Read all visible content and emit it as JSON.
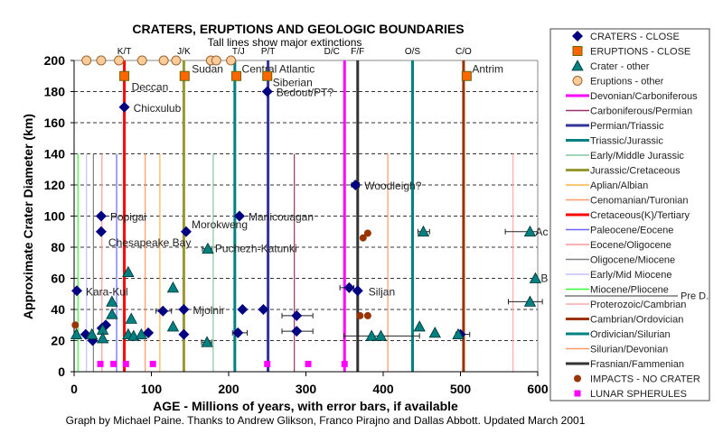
{
  "chart_data": {
    "type": "scatter",
    "title": "CRATERS, ERUPTIONS  AND GEOLOGIC BOUNDARIES",
    "subtitle": "Tall lines show major extinctions",
    "xlabel": "AGE - Millions of years, with error bars, if available",
    "ylabel": "Approximate Crater Diameter (km)",
    "footer": "Graph by Michael Paine. Thanks to Andrew Glikson, Franco Pirajno and Dallas Abbott.  Updated March 2001",
    "xlim": [
      0,
      600
    ],
    "ylim": [
      0,
      200
    ],
    "xticks": [
      "0",
      "100",
      "200",
      "300",
      "400",
      "500",
      "600"
    ],
    "yticks": [
      "0",
      "20",
      "40",
      "60",
      "80",
      "100",
      "120",
      "140",
      "160",
      "180",
      "200"
    ],
    "grid": "horizontal dashed",
    "legend_position": "right",
    "series": [
      {
        "name": "CRATERS - CLOSE",
        "marker": "diamond",
        "color": "#000080",
        "points": [
          {
            "x": 65,
            "y": 170,
            "label": "Chicxulub"
          },
          {
            "x": 250,
            "y": 180,
            "label": "Bedout/PT?"
          },
          {
            "x": 364,
            "y": 120,
            "label": "Woodleigh?",
            "err": [
              359,
              369
            ]
          },
          {
            "x": 35,
            "y": 100,
            "label": "Popigai"
          },
          {
            "x": 35,
            "y": 90,
            "label": "Chesapeake Bay"
          },
          {
            "x": 145,
            "y": 90,
            "label": "Morokweng"
          },
          {
            "x": 214,
            "y": 100,
            "label": "Manicouagan"
          },
          {
            "x": 3.5,
            "y": 52,
            "label": "Kara-Kul"
          },
          {
            "x": 356,
            "y": 54,
            "err": [
              344,
              362
            ]
          },
          {
            "x": 367,
            "y": 52,
            "label": "Siljan"
          },
          {
            "x": 142,
            "y": 40,
            "label": "Mjolnir"
          },
          {
            "x": 115,
            "y": 39,
            "err": [
              106,
              126
            ]
          },
          {
            "x": 218,
            "y": 40
          },
          {
            "x": 245,
            "y": 40
          },
          {
            "x": 288,
            "y": 36,
            "err": [
              269,
              309
            ]
          },
          {
            "x": 288,
            "y": 26,
            "err": [
              269,
              309
            ]
          },
          {
            "x": 142,
            "y": 24
          },
          {
            "x": 212,
            "y": 25,
            "err": [
              205,
              224
            ]
          },
          {
            "x": 15,
            "y": 24
          },
          {
            "x": 24,
            "y": 20
          },
          {
            "x": 36,
            "y": 28
          },
          {
            "x": 41,
            "y": 30
          },
          {
            "x": 96,
            "y": 25
          },
          {
            "x": 500,
            "y": 24,
            "err": [
              494,
              512
            ]
          }
        ]
      },
      {
        "name": "ERUPTIONS - CLOSE",
        "marker": "square",
        "color": "#ff6600",
        "points": [
          {
            "x": 65,
            "y": 190,
            "label": "Deccan"
          },
          {
            "x": 143,
            "y": 190,
            "label": "Sudan"
          },
          {
            "x": 210,
            "y": 190,
            "label": "Central Atlantic"
          },
          {
            "x": 250,
            "y": 190,
            "label": "Siberian"
          },
          {
            "x": 508,
            "y": 190,
            "label": "Antrim"
          }
        ]
      },
      {
        "name": "Crater - other",
        "marker": "triangle",
        "color": "#008080",
        "points": [
          {
            "x": 3,
            "y": 24
          },
          {
            "x": 23,
            "y": 24
          },
          {
            "x": 37,
            "y": 27
          },
          {
            "x": 37,
            "y": 21.5
          },
          {
            "x": 49,
            "y": 45
          },
          {
            "x": 49,
            "y": 37
          },
          {
            "x": 74,
            "y": 34
          },
          {
            "x": 70,
            "y": 24
          },
          {
            "x": 77,
            "y": 23
          },
          {
            "x": 87,
            "y": 24
          },
          {
            "x": 70,
            "y": 64
          },
          {
            "x": 128,
            "y": 54
          },
          {
            "x": 128,
            "y": 29
          },
          {
            "x": 172,
            "y": 19,
            "err": [
              165,
              178
            ]
          },
          {
            "x": 173,
            "y": 79,
            "label": "Puchezh-Katunki",
            "err": [
              166,
              178
            ]
          },
          {
            "x": 452,
            "y": 90,
            "err": [
              445,
              460
            ]
          },
          {
            "x": 590,
            "y": 90,
            "label": "Ac",
            "err": [
              558,
              600
            ]
          },
          {
            "x": 597,
            "y": 60,
            "label": "B"
          },
          {
            "x": 590,
            "y": 45,
            "err": [
              562,
              606
            ]
          },
          {
            "x": 447,
            "y": 29
          },
          {
            "x": 467,
            "y": 25
          },
          {
            "x": 497,
            "y": 24
          },
          {
            "x": 385,
            "y": 23,
            "err": [
              349,
              447
            ]
          },
          {
            "x": 397,
            "y": 23
          }
        ]
      },
      {
        "name": "Eruptions - other",
        "marker": "circle",
        "color": "#ffcc99",
        "points": [
          {
            "x": 16,
            "y": 200
          },
          {
            "x": 35,
            "y": 200
          },
          {
            "x": 58,
            "y": 200
          },
          {
            "x": 88,
            "y": 200
          },
          {
            "x": 116,
            "y": 200
          },
          {
            "x": 132,
            "y": 200
          },
          {
            "x": 177,
            "y": 200
          },
          {
            "x": 184,
            "y": 200
          },
          {
            "x": 203,
            "y": 200
          }
        ]
      },
      {
        "name": "IMPACTS - NO CRATER",
        "marker": "dot",
        "color": "#993300",
        "points": [
          {
            "x": 1.5,
            "y": 30
          },
          {
            "x": 374,
            "y": 86
          },
          {
            "x": 380,
            "y": 89
          },
          {
            "x": 370,
            "y": 36
          },
          {
            "x": 380,
            "y": 36
          }
        ]
      },
      {
        "name": "LUNAR SPHERULES",
        "marker": "pinksquare",
        "color": "#ff00ff",
        "points": [
          {
            "x": 34,
            "y": 5
          },
          {
            "x": 51,
            "y": 5
          },
          {
            "x": 67,
            "y": 5
          },
          {
            "x": 102,
            "y": 5
          },
          {
            "x": 250,
            "y": 5
          },
          {
            "x": 303,
            "y": 5
          },
          {
            "x": 350,
            "y": 5
          }
        ]
      }
    ],
    "boundaries": [
      {
        "name": "Devonian/Carboniferous",
        "abbr": "D/C",
        "age": 350,
        "color": "#ff00ff",
        "tall": true
      },
      {
        "name": "Carboniferous/Permian",
        "abbr": "",
        "age": 285,
        "color": "#993366",
        "tall": false
      },
      {
        "name": "Permian/Triassic",
        "abbr": "P/T",
        "age": 251,
        "color": "#333399",
        "tall": true
      },
      {
        "name": "Triassic/Jurassic",
        "abbr": "T/J",
        "age": 208,
        "color": "#008080",
        "tall": true
      },
      {
        "name": "Early/Middle Jurassic",
        "abbr": "",
        "age": 180,
        "color": "#80c8a0",
        "tall": false
      },
      {
        "name": "Jurassic/Cretaceous",
        "abbr": "J/K",
        "age": 142,
        "color": "#999933",
        "tall": true
      },
      {
        "name": "Aplian/Albian",
        "abbr": "",
        "age": 111,
        "color": "#ffb347",
        "tall": false
      },
      {
        "name": "Cenomanian/Turonian",
        "abbr": "",
        "age": 92,
        "color": "#ff9966",
        "tall": false
      },
      {
        "name": "Cretaceous(K)/Tertiary",
        "abbr": "K/T",
        "age": 65,
        "color": "#ff0000",
        "tall": true
      },
      {
        "name": "Paleocene/Eocene",
        "abbr": "",
        "age": 55,
        "color": "#6666ff",
        "tall": false
      },
      {
        "name": "Eocene/Oligocene",
        "abbr": "",
        "age": 36,
        "color": "#ff9999",
        "tall": false
      },
      {
        "name": "Oligocene/Miocene",
        "abbr": "",
        "age": 25,
        "color": "#808080",
        "tall": false
      },
      {
        "name": "Early/Mid Miocene",
        "abbr": "",
        "age": 16,
        "color": "#c0c0ff",
        "tall": false
      },
      {
        "name": "Miocene/Pliocene",
        "abbr": "",
        "age": 5,
        "color": "#33ff33",
        "tall": false
      },
      {
        "name": "Proterozoic/Cambrian",
        "abbr": "",
        "age": 568,
        "color": "#ffaaaa",
        "tall": false
      },
      {
        "name": "Cambrian/Ordovician",
        "abbr": "C/O",
        "age": 504,
        "color": "#993300",
        "tall": true
      },
      {
        "name": "Ordivician/Silurian",
        "abbr": "O/S",
        "age": 438,
        "color": "#008080",
        "tall": true
      },
      {
        "name": "Silurian/Devonian",
        "abbr": "",
        "age": 406,
        "color": "#ff9966",
        "tall": false
      },
      {
        "name": "Frasnian/Fammenian",
        "abbr": "F/F",
        "age": 367,
        "color": "#333333",
        "tall": true
      }
    ],
    "legend_note": "Pre D."
  }
}
